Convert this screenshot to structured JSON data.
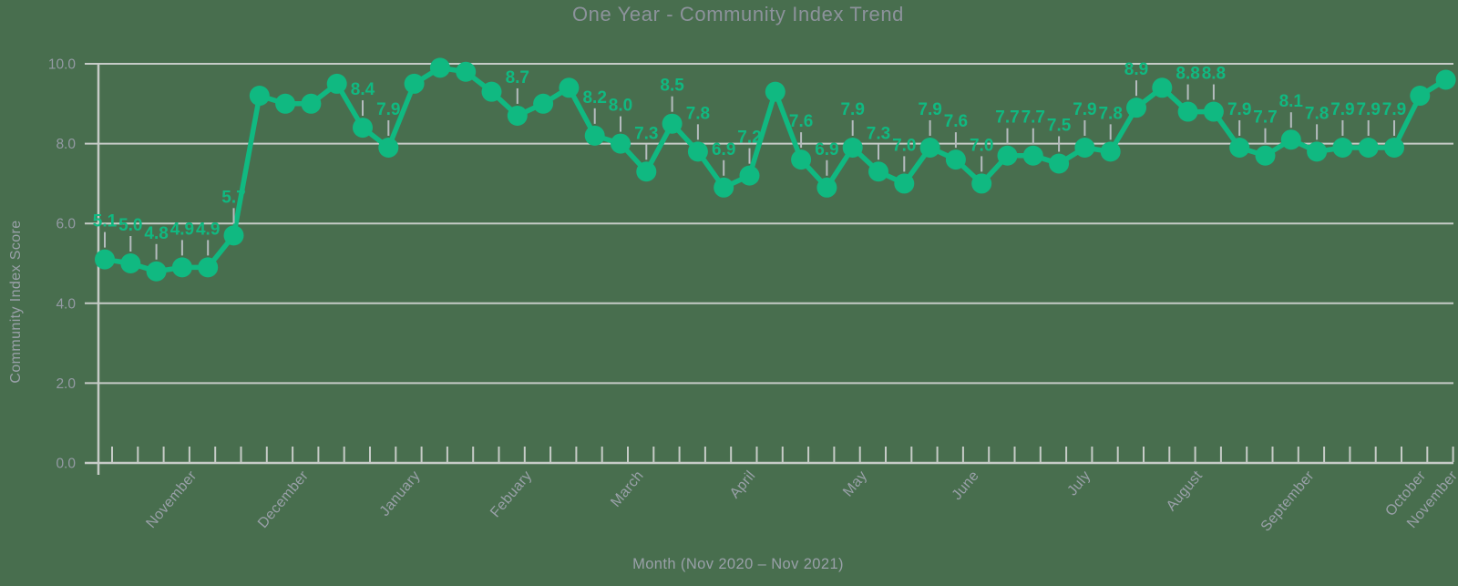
{
  "title": "One Year - Community Index Trend",
  "colors": {
    "background": "#486E4E",
    "line": "#10B981",
    "point": "#10B981",
    "grid": "#C6CBC7",
    "axis": "#C6CBC7",
    "axis_text": "#949AA4",
    "title_text": "#8C929B",
    "leader_line": "#B5BBBE"
  },
  "chart_data": {
    "type": "line",
    "title": "One Year - Community Index Trend",
    "xlabel": "Month (Nov 2020 – Nov 2021)",
    "ylabel": "Community Index Score",
    "ylim": [
      0,
      10
    ],
    "yticks": [
      0,
      2,
      4,
      6,
      8,
      10
    ],
    "ytick_labels": [
      "0.0",
      "2.0",
      "4.0",
      "6.0",
      "8.0",
      "10.0"
    ],
    "grid": true,
    "legend": "none",
    "x_unit": "week",
    "categories": [
      "November",
      "December",
      "January",
      "Febuary",
      "March",
      "April",
      "May",
      "June",
      "July",
      "August",
      "September",
      "October",
      "November"
    ],
    "series": [
      {
        "name": "Community Index Score",
        "values": [
          5.1,
          5.0,
          4.8,
          4.9,
          4.9,
          5.7,
          9.2,
          9.0,
          9.0,
          9.5,
          8.4,
          7.9,
          9.5,
          9.9,
          9.8,
          9.3,
          8.7,
          9.0,
          9.4,
          8.2,
          8.0,
          7.3,
          8.5,
          7.8,
          6.9,
          7.2,
          9.3,
          7.6,
          6.9,
          7.9,
          7.3,
          7.0,
          7.9,
          7.6,
          7.0,
          7.7,
          7.7,
          7.5,
          7.9,
          7.8,
          8.9,
          9.4,
          8.8,
          8.8,
          7.9,
          7.7,
          8.1,
          7.8,
          7.9,
          7.9,
          7.9,
          9.2,
          9.6
        ],
        "point_labels": [
          "5.1",
          "5.0",
          "4.8",
          "4.9",
          "4.9",
          "5.7",
          null,
          null,
          null,
          null,
          "8.4",
          "7.9",
          null,
          null,
          null,
          null,
          "8.7",
          null,
          null,
          "8.2",
          "8.0",
          "7.3",
          "8.5",
          "7.8",
          "6.9",
          "7.2",
          null,
          "7.6",
          "6.9",
          "7.9",
          "7.3",
          "7.0",
          "7.9",
          "7.6",
          "7.0",
          "7.7",
          "7.7",
          "7.5",
          "7.9",
          "7.8",
          "8.9",
          null,
          "8.8",
          "8.8",
          "7.9",
          "7.7",
          "8.1",
          "7.8",
          "7.9",
          "7.9",
          "7.9",
          null,
          null
        ]
      }
    ]
  }
}
